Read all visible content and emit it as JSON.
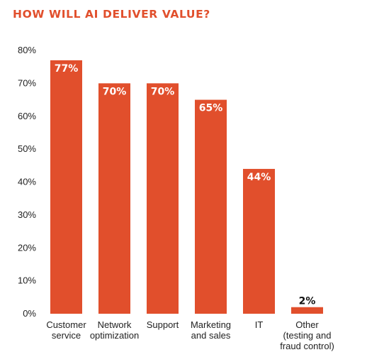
{
  "chart_data": {
    "type": "bar",
    "title": "HOW WILL AI DELIVER VALUE?",
    "categories": [
      [
        "Customer",
        "service"
      ],
      [
        "Network",
        "optimization"
      ],
      [
        "Support"
      ],
      [
        "Marketing",
        "and sales"
      ],
      [
        "IT"
      ],
      [
        "Other",
        "(testing and",
        "fraud control)"
      ]
    ],
    "values": [
      77,
      70,
      70,
      65,
      44,
      2
    ],
    "value_labels": [
      "77%",
      "70%",
      "70%",
      "65%",
      "44%",
      "2%"
    ],
    "ylim": [
      0,
      80
    ],
    "yticks": [
      "0%",
      "10%",
      "20%",
      "30%",
      "40%",
      "50%",
      "60%",
      "70%",
      "80%"
    ],
    "grid": false,
    "xlabel": "",
    "ylabel": "",
    "colors": {
      "bar": "#e14f2c",
      "title": "#e14f2c",
      "label_inside": "#ffffff",
      "label_outside": "#111111",
      "axis_text": "#222222"
    }
  }
}
